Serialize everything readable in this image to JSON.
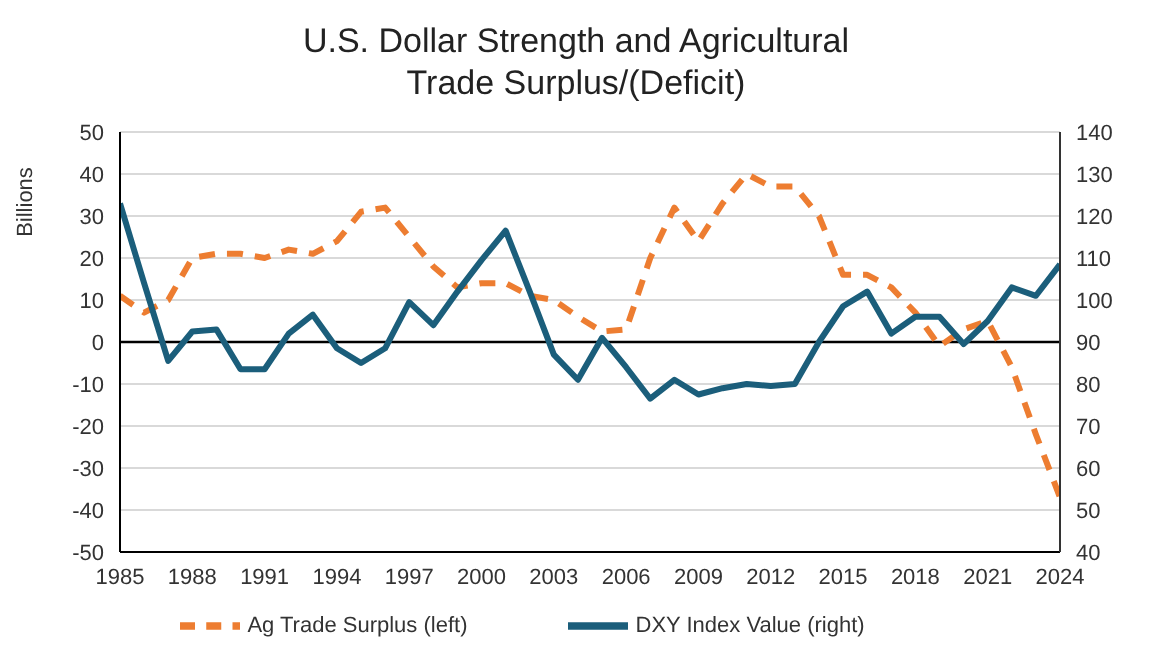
{
  "chart_data": {
    "type": "line",
    "title": "U.S. Dollar Strength and Agricultural Trade Surplus/(Deficit)",
    "ylabel": "Billions",
    "x": [
      1985,
      1986,
      1987,
      1988,
      1989,
      1990,
      1991,
      1992,
      1993,
      1994,
      1995,
      1996,
      1997,
      1998,
      1999,
      2000,
      2001,
      2002,
      2003,
      2004,
      2005,
      2006,
      2007,
      2008,
      2009,
      2010,
      2011,
      2012,
      2013,
      2014,
      2015,
      2016,
      2017,
      2018,
      2019,
      2020,
      2021,
      2022,
      2023,
      2024
    ],
    "xlim": [
      1985,
      2024
    ],
    "xticks": [
      1985,
      1988,
      1991,
      1994,
      1997,
      2000,
      2003,
      2006,
      2009,
      2012,
      2015,
      2018,
      2021,
      2024
    ],
    "ylim": [
      -50,
      50
    ],
    "yticks": [
      -50,
      -40,
      -30,
      -20,
      -10,
      0,
      10,
      20,
      30,
      40,
      50
    ],
    "y2lim": [
      40,
      140
    ],
    "y2ticks": [
      40,
      50,
      60,
      70,
      80,
      90,
      100,
      110,
      120,
      130,
      140
    ],
    "grid": "y",
    "legend": "bottom",
    "line_style": "solid",
    "marker": "none",
    "ref_lines": [
      {
        "axis": "y",
        "value": 0,
        "color": "#000000"
      }
    ],
    "series": [
      {
        "name": "Ag Trade Surplus (left)",
        "color": "#ed7d31",
        "line_style": "dashed",
        "values": [
          11,
          7,
          10,
          20,
          21,
          21,
          20,
          22,
          21,
          24,
          31,
          32,
          25,
          18,
          13,
          14,
          14,
          11,
          10,
          6,
          2.5,
          3,
          20,
          32,
          24,
          33,
          40,
          37,
          37,
          30,
          16,
          16,
          13,
          7,
          -1,
          3,
          5,
          -6,
          -22,
          -37
        ]
      },
      {
        "name": "DXY Index Value (right)",
        "color": "#1b5e7b",
        "axis": "y2",
        "values": [
          123,
          104,
          85.5,
          92.5,
          93,
          83.5,
          83.5,
          92,
          96.5,
          88.5,
          85,
          88.5,
          99.5,
          94,
          102,
          109.5,
          116.5,
          102,
          87,
          81,
          91,
          84,
          76.5,
          81,
          77.5,
          79,
          80,
          79.5,
          80,
          90,
          98.5,
          102,
          92,
          96,
          96,
          89.5,
          95,
          103,
          101,
          108.5
        ]
      }
    ]
  }
}
